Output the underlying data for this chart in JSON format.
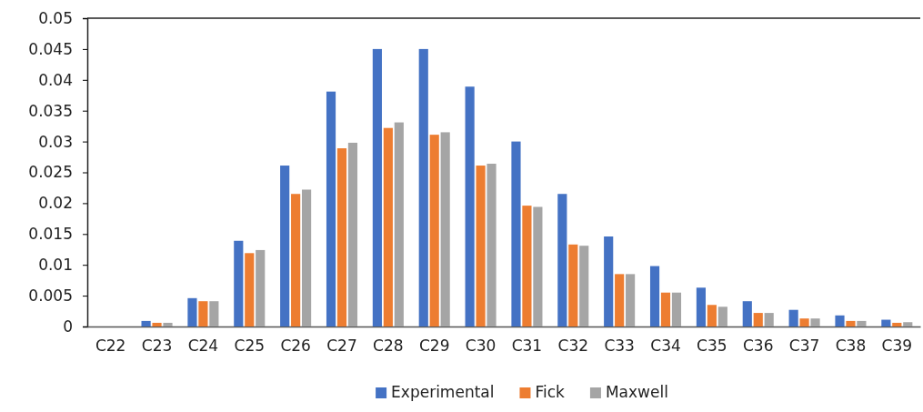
{
  "chart_data": {
    "type": "bar",
    "categories": [
      "C22",
      "C23",
      "C24",
      "C25",
      "C26",
      "C27",
      "C28",
      "C29",
      "C30",
      "C31",
      "C32",
      "C33",
      "C34",
      "C35",
      "C36",
      "C37",
      "C38",
      "C39"
    ],
    "series": [
      {
        "name": "Experimental",
        "color": "#4472c4",
        "values": [
          0,
          0.0009,
          0.0046,
          0.0139,
          0.0261,
          0.0381,
          0.045,
          0.045,
          0.0389,
          0.03,
          0.0215,
          0.0146,
          0.0098,
          0.0063,
          0.0041,
          0.0027,
          0.0018,
          0.0011
        ]
      },
      {
        "name": "Fick",
        "color": "#ed7d31",
        "values": [
          0,
          0.0006,
          0.0041,
          0.0119,
          0.0215,
          0.0289,
          0.0322,
          0.0311,
          0.0261,
          0.0196,
          0.0133,
          0.0085,
          0.0055,
          0.0035,
          0.0022,
          0.0013,
          0.0009,
          0.0006
        ]
      },
      {
        "name": "Maxwell",
        "color": "#a5a5a5",
        "values": [
          0,
          0.0006,
          0.0041,
          0.0124,
          0.0222,
          0.0298,
          0.0331,
          0.0315,
          0.0264,
          0.0194,
          0.0131,
          0.0085,
          0.0055,
          0.0032,
          0.0022,
          0.0013,
          0.0009,
          0.0007
        ]
      }
    ],
    "ylim": [
      0,
      0.05
    ],
    "yticks": [
      0,
      0.005,
      0.01,
      0.015,
      0.02,
      0.025,
      0.03,
      0.035,
      0.04,
      0.045,
      0.05
    ],
    "grid": false,
    "legend": "bottom"
  }
}
